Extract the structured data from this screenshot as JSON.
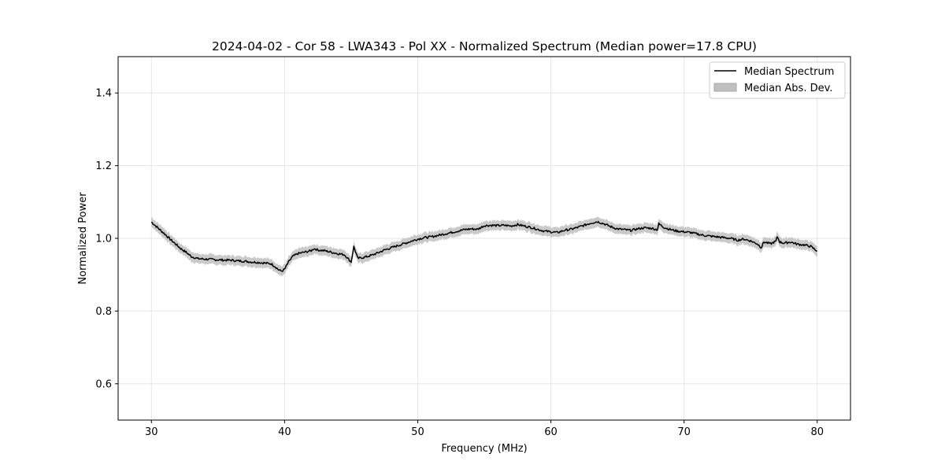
{
  "chart_data": {
    "type": "line",
    "title": "2024-04-02 - Cor 58 - LWA343 - Pol XX - Normalized Spectrum (Median power=17.8 CPU)",
    "xlabel": "Frequency (MHz)",
    "ylabel": "Normalized Power",
    "xlim": [
      27.5,
      82.5
    ],
    "ylim": [
      0.5,
      1.5
    ],
    "xticks": [
      30,
      40,
      50,
      60,
      70,
      80
    ],
    "yticks": [
      0.6,
      0.8,
      1.0,
      1.2,
      1.4
    ],
    "xtick_labels": [
      "30",
      "40",
      "50",
      "60",
      "70",
      "80"
    ],
    "ytick_labels": [
      "0.6",
      "0.8",
      "1.0",
      "1.2",
      "1.4"
    ],
    "grid": true,
    "legend": {
      "position": "top-right",
      "entries": [
        "Median Spectrum",
        "Median Abs. Dev."
      ]
    },
    "colors": {
      "line": "#000000",
      "band": "#bfbfbf",
      "grid": "#e6e6e6"
    },
    "mad_halfwidth": 0.012,
    "series": [
      {
        "name": "Median Spectrum",
        "x": [
          30.0,
          30.3,
          30.6,
          31.0,
          31.4,
          31.8,
          32.2,
          32.6,
          33.0,
          33.5,
          34.0,
          34.5,
          35.0,
          35.5,
          36.0,
          36.5,
          37.0,
          37.5,
          38.0,
          38.5,
          39.0,
          39.3,
          39.6,
          39.8,
          40.0,
          40.3,
          40.6,
          41.0,
          41.5,
          42.0,
          42.2,
          42.5,
          43.0,
          43.5,
          44.0,
          44.5,
          44.8,
          45.0,
          45.2,
          45.5,
          46.0,
          46.5,
          47.0,
          47.5,
          48.0,
          48.5,
          49.0,
          49.5,
          50.0,
          50.5,
          51.0,
          51.5,
          52.0,
          52.5,
          53.0,
          53.5,
          54.0,
          54.5,
          55.0,
          55.5,
          56.0,
          56.5,
          57.0,
          57.5,
          58.0,
          58.5,
          59.0,
          59.5,
          60.0,
          60.5,
          61.0,
          61.5,
          62.0,
          62.5,
          63.0,
          63.5,
          64.0,
          64.5,
          65.0,
          65.5,
          66.0,
          66.5,
          67.0,
          67.5,
          68.0,
          68.1,
          68.5,
          69.0,
          69.5,
          70.0,
          70.5,
          71.0,
          71.5,
          72.0,
          72.5,
          73.0,
          73.5,
          74.0,
          74.5,
          75.0,
          75.5,
          75.8,
          76.0,
          76.5,
          76.9,
          77.0,
          77.2,
          77.5,
          78.0,
          78.5,
          79.0,
          79.5,
          80.0
        ],
        "values": [
          1.045,
          1.035,
          1.025,
          1.012,
          0.998,
          0.985,
          0.972,
          0.962,
          0.95,
          0.944,
          0.943,
          0.942,
          0.941,
          0.94,
          0.94,
          0.938,
          0.937,
          0.935,
          0.934,
          0.932,
          0.93,
          0.922,
          0.912,
          0.91,
          0.915,
          0.935,
          0.95,
          0.958,
          0.962,
          0.966,
          0.972,
          0.968,
          0.966,
          0.962,
          0.958,
          0.955,
          0.943,
          0.935,
          0.977,
          0.945,
          0.948,
          0.953,
          0.96,
          0.968,
          0.974,
          0.98,
          0.986,
          0.992,
          0.998,
          1.002,
          1.004,
          1.008,
          1.012,
          1.016,
          1.02,
          1.024,
          1.026,
          1.025,
          1.035,
          1.036,
          1.035,
          1.036,
          1.034,
          1.038,
          1.034,
          1.03,
          1.025,
          1.02,
          1.018,
          1.016,
          1.022,
          1.025,
          1.03,
          1.036,
          1.042,
          1.046,
          1.04,
          1.032,
          1.026,
          1.024,
          1.022,
          1.026,
          1.029,
          1.028,
          1.024,
          1.04,
          1.03,
          1.024,
          1.02,
          1.018,
          1.016,
          1.012,
          1.008,
          1.006,
          1.004,
          1.002,
          1.0,
          0.995,
          0.998,
          0.993,
          0.985,
          0.975,
          0.99,
          0.985,
          0.992,
          1.005,
          0.99,
          0.987,
          0.99,
          0.984,
          0.982,
          0.978,
          0.965
        ]
      }
    ]
  }
}
